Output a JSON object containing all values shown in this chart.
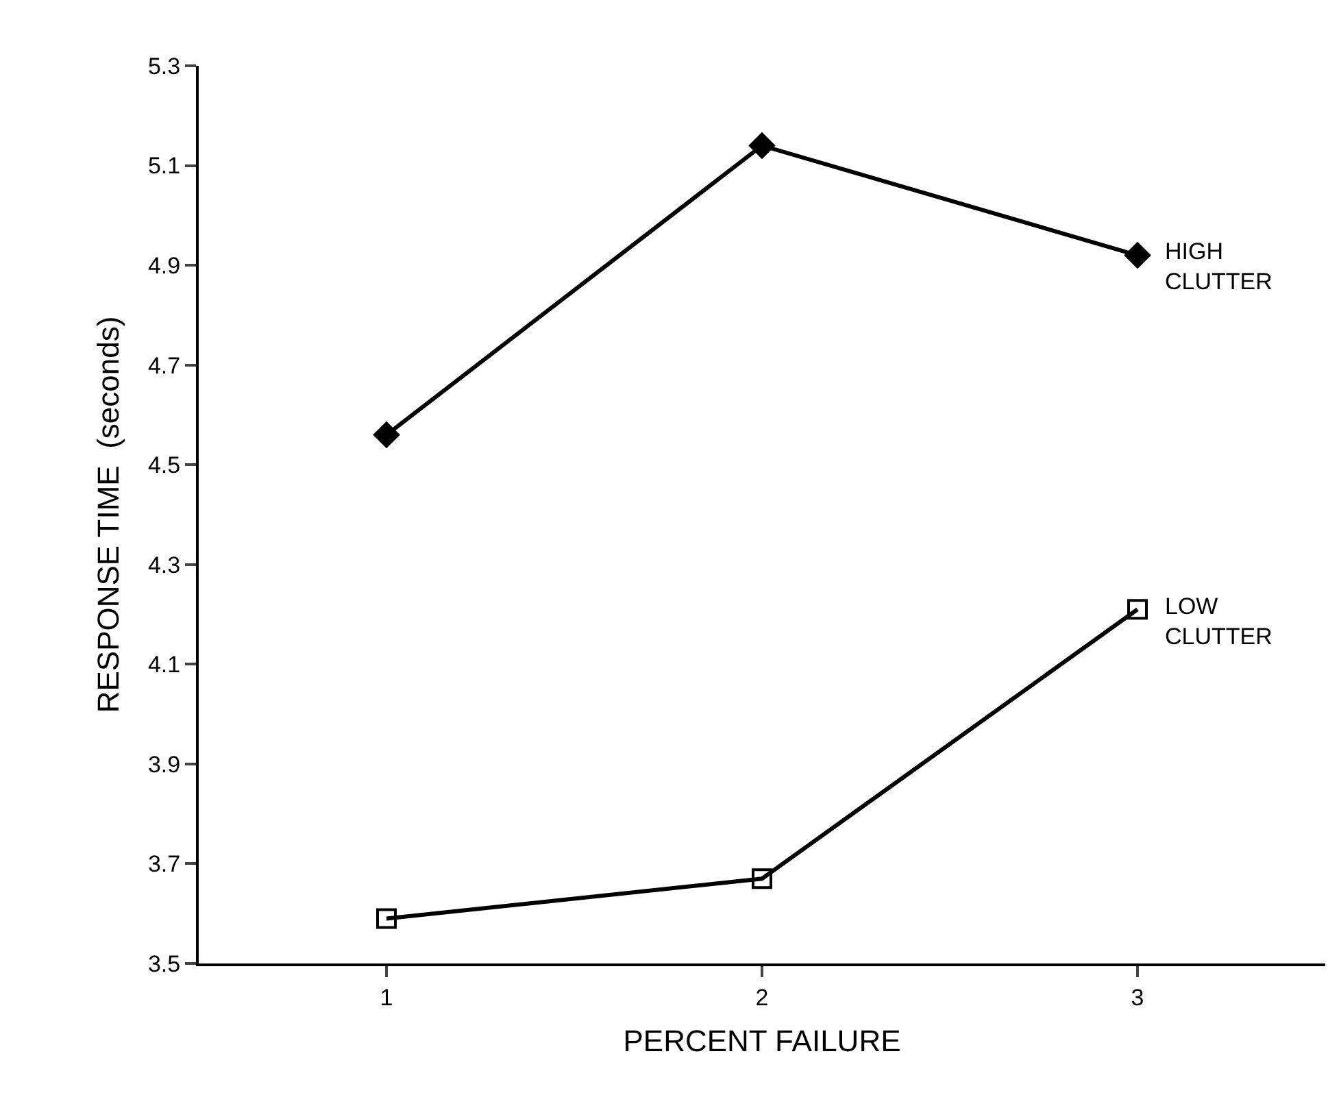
{
  "chart_data": {
    "type": "line",
    "xlabel": "PERCENT FAILURE",
    "ylabel": "RESPONSE TIME  (seconds)",
    "x": [
      1,
      2,
      3
    ],
    "xlim": [
      0.5,
      3.5
    ],
    "xticks": [
      1,
      2,
      3
    ],
    "ylim": [
      3.5,
      5.3
    ],
    "yticks": [
      3.5,
      3.7,
      3.9,
      4.1,
      4.3,
      4.5,
      4.7,
      4.9,
      5.1,
      5.3
    ],
    "series": [
      {
        "name": "HIGH CLUTTER",
        "color": "#000000",
        "marker": "diamond",
        "values": [
          4.56,
          5.14,
          4.92
        ]
      },
      {
        "name": "LOW CLUTTER",
        "color": "#000000",
        "marker": "square",
        "values": [
          3.59,
          3.67,
          4.21
        ]
      }
    ]
  }
}
